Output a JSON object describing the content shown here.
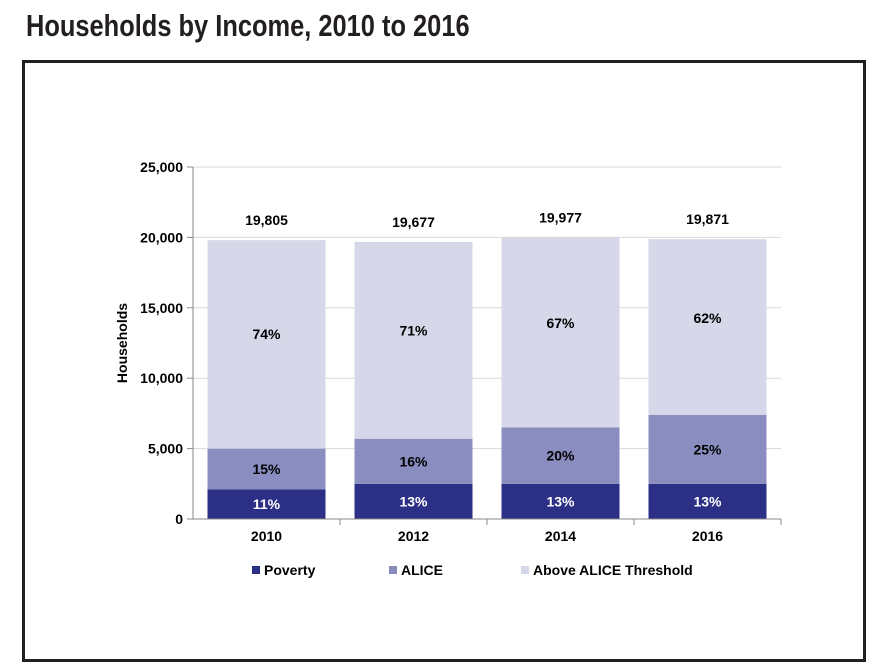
{
  "title": "Households by Income, 2010 to 2016",
  "colors": {
    "poverty": "#2b2f86",
    "alice": "#8a8dc0",
    "above": "#d6d7e8",
    "axis": "#888888",
    "grid": "#d9d9d9"
  },
  "chart_data": {
    "type": "bar",
    "stacked": true,
    "categories": [
      "2010",
      "2012",
      "2014",
      "2016"
    ],
    "totals": [
      19805,
      19677,
      19977,
      19871
    ],
    "total_labels": [
      "19,805",
      "19,677",
      "19,977",
      "19,871"
    ],
    "series": [
      {
        "name": "Poverty",
        "values": [
          2100,
          2500,
          2500,
          2500
        ],
        "labels": [
          "11%",
          "13%",
          "13%",
          "13%"
        ],
        "color": "#2b2f86",
        "label_color": "#ffffff"
      },
      {
        "name": "ALICE",
        "values": [
          2900,
          3200,
          4000,
          4900
        ],
        "labels": [
          "15%",
          "16%",
          "20%",
          "25%"
        ],
        "color": "#8a8dc0",
        "label_color": "#000000"
      },
      {
        "name": "Above ALICE Threshold",
        "values": [
          14805,
          13977,
          13477,
          12471
        ],
        "labels": [
          "74%",
          "71%",
          "67%",
          "62%"
        ],
        "color": "#d6d7e8",
        "label_color": "#000000"
      }
    ],
    "ylabel": "Households",
    "ylim": [
      0,
      25000
    ],
    "yticks": [
      0,
      5000,
      10000,
      15000,
      20000,
      25000
    ],
    "ytick_labels": [
      "0",
      "5,000",
      "10,000",
      "15,000",
      "20,000",
      "25,000"
    ],
    "grid": true,
    "legend": "bottom"
  }
}
